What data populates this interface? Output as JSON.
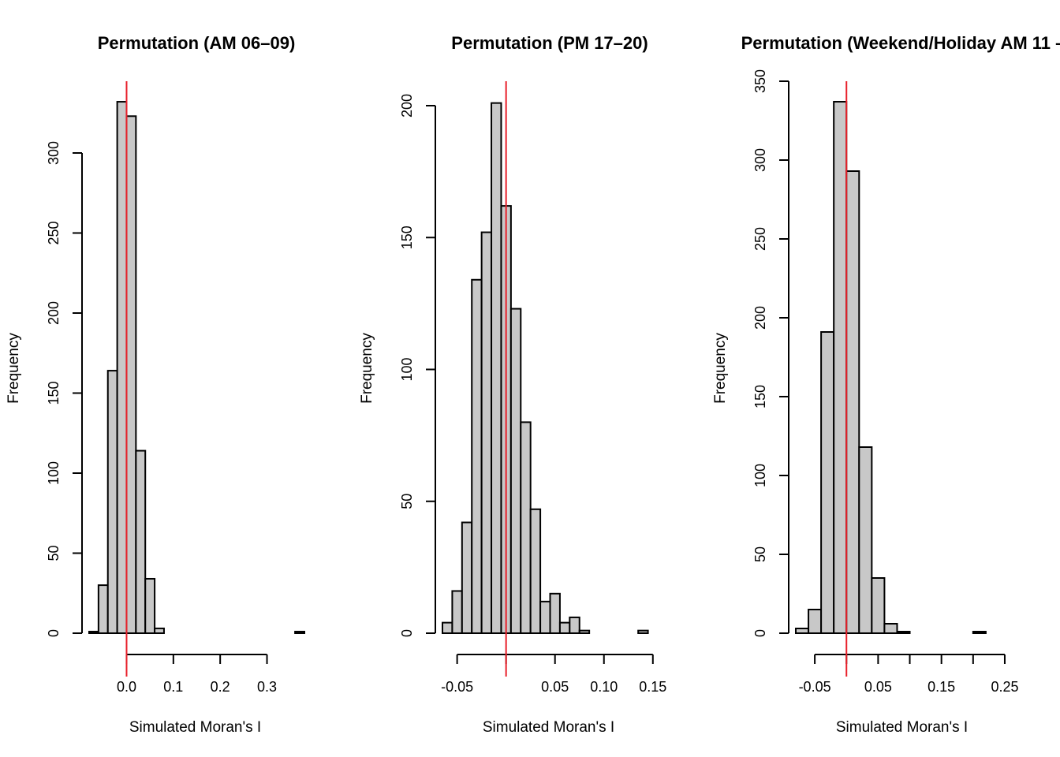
{
  "chart_data": [
    {
      "type": "bar",
      "title": "Permutation (AM 06–09)",
      "xlabel": "Simulated Moran's I",
      "ylabel": "Frequency",
      "bin_start": -0.08,
      "bin_width": 0.02,
      "values": [
        1,
        30,
        164,
        332,
        323,
        114,
        34,
        3,
        0,
        0,
        0,
        0,
        0,
        0,
        0,
        0,
        0,
        0,
        0,
        0,
        0,
        0,
        1
      ],
      "xlim": [
        -0.08,
        0.38
      ],
      "xticks": [
        0.0,
        0.1,
        0.2,
        0.3
      ],
      "xtick_labels": [
        "0.0",
        "0.1",
        "0.2",
        "0.3"
      ],
      "ylim": [
        0,
        300
      ],
      "yticks": [
        0,
        50,
        100,
        150,
        200,
        250,
        300
      ],
      "ytick_labels": [
        "0",
        "50",
        "100",
        "150",
        "200",
        "250",
        "300"
      ],
      "observed": 0.0,
      "observed_color": "#e8202a"
    },
    {
      "type": "bar",
      "title": "Permutation (PM 17–20)",
      "xlabel": "Simulated Moran's I",
      "ylabel": "Frequency",
      "bin_start": -0.065,
      "bin_width": 0.01,
      "values": [
        4,
        16,
        42,
        134,
        152,
        201,
        162,
        123,
        80,
        47,
        12,
        15,
        4,
        6,
        1,
        0,
        0,
        0,
        0,
        0,
        1
      ],
      "xlim": [
        -0.065,
        0.155
      ],
      "xticks": [
        -0.05,
        0.0,
        0.05,
        0.1,
        0.15
      ],
      "xtick_labels": [
        "-0.05",
        "",
        "0.05",
        "0.10",
        "0.15"
      ],
      "ylim": [
        0,
        200
      ],
      "yticks": [
        0,
        50,
        100,
        150,
        200
      ],
      "ytick_labels": [
        "0",
        "50",
        "100",
        "150",
        "200"
      ],
      "observed": 0.0,
      "observed_color": "#e8202a"
    },
    {
      "type": "bar",
      "title": "Permutation (Weekend/Holiday AM 11 –",
      "xlabel": "Simulated Moran's I",
      "ylabel": "Frequency",
      "bin_start": -0.08,
      "bin_width": 0.02,
      "values": [
        3,
        15,
        191,
        337,
        293,
        118,
        35,
        6,
        1,
        0,
        0,
        0,
        0,
        0,
        1
      ],
      "xlim": [
        -0.08,
        0.26
      ],
      "xticks": [
        -0.05,
        0.0,
        0.05,
        0.1,
        0.15,
        0.2,
        0.25
      ],
      "xtick_labels": [
        "-0.05",
        "",
        "0.05",
        "",
        "0.15",
        "",
        "0.25"
      ],
      "ylim": [
        0,
        350
      ],
      "yticks": [
        0,
        50,
        100,
        150,
        200,
        250,
        300,
        350
      ],
      "ytick_labels": [
        "0",
        "50",
        "100",
        "150",
        "200",
        "250",
        "300",
        "350"
      ],
      "observed": 0.0,
      "observed_color": "#e8202a"
    }
  ]
}
